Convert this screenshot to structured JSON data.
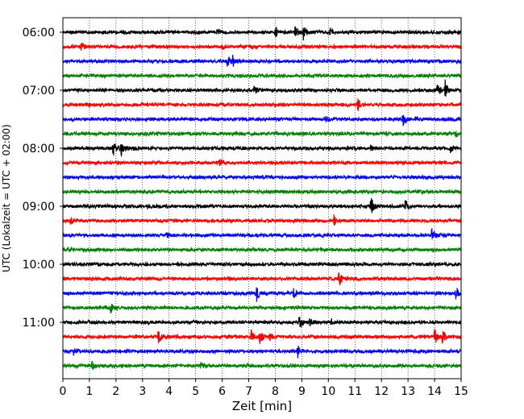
{
  "chart_data": {
    "type": "line",
    "title": "",
    "xlabel": "Zeit  [min]",
    "ylabel": "UTC (Lokalzeit = UTC + 02:00)",
    "xlim": [
      0,
      15
    ],
    "x_ticks": [
      "0",
      "1",
      "2",
      "3",
      "4",
      "5",
      "6",
      "7",
      "8",
      "9",
      "10",
      "11",
      "12",
      "13",
      "14",
      "15"
    ],
    "y_tick_labels": [
      "06:00",
      "07:00",
      "08:00",
      "09:00",
      "10:00",
      "11:00"
    ],
    "grid": {
      "x": true,
      "y": false,
      "style": "dotted"
    },
    "trace_colors": [
      "#000000",
      "#ff0000",
      "#0000ff",
      "#008000"
    ],
    "traces": [
      {
        "start": "06:00",
        "color": "#000000",
        "events": [
          {
            "t": 5.8,
            "a": 0.35
          },
          {
            "t": 8.0,
            "a": 0.7
          },
          {
            "t": 8.75,
            "a": 0.9
          },
          {
            "t": 9.05,
            "a": 0.8
          },
          {
            "t": 10.05,
            "a": 0.75
          }
        ]
      },
      {
        "start": "06:15",
        "color": "#ff0000",
        "events": [
          {
            "t": 0.7,
            "a": 0.5
          },
          {
            "t": 6.0,
            "a": 0.2
          }
        ]
      },
      {
        "start": "06:30",
        "color": "#0000ff",
        "events": [
          {
            "t": 6.2,
            "a": 0.6
          },
          {
            "t": 6.4,
            "a": 0.5
          }
        ]
      },
      {
        "start": "06:45",
        "color": "#008000",
        "events": []
      },
      {
        "start": "07:00",
        "color": "#000000",
        "events": [
          {
            "t": 7.2,
            "a": 0.55
          },
          {
            "t": 14.1,
            "a": 0.9
          },
          {
            "t": 14.4,
            "a": 1.0
          }
        ]
      },
      {
        "start": "07:15",
        "color": "#ff0000",
        "events": [
          {
            "t": 11.1,
            "a": 0.7
          }
        ]
      },
      {
        "start": "07:30",
        "color": "#0000ff",
        "events": [
          {
            "t": 9.9,
            "a": 0.35
          },
          {
            "t": 12.8,
            "a": 0.75
          },
          {
            "t": 13.3,
            "a": 0.3
          }
        ]
      },
      {
        "start": "07:45",
        "color": "#008000",
        "events": [
          {
            "t": 14.8,
            "a": 0.3
          }
        ]
      },
      {
        "start": "08:00",
        "color": "#000000",
        "events": [
          {
            "t": 1.9,
            "a": 0.9
          },
          {
            "t": 2.2,
            "a": 0.7
          },
          {
            "t": 2.6,
            "a": 0.3
          },
          {
            "t": 11.6,
            "a": 0.35
          },
          {
            "t": 14.6,
            "a": 0.4
          }
        ]
      },
      {
        "start": "08:15",
        "color": "#ff0000",
        "events": [
          {
            "t": 5.9,
            "a": 0.45
          }
        ]
      },
      {
        "start": "08:30",
        "color": "#0000ff",
        "events": []
      },
      {
        "start": "08:45",
        "color": "#008000",
        "events": []
      },
      {
        "start": "09:00",
        "color": "#000000",
        "events": [
          {
            "t": 3.2,
            "a": 0.35
          },
          {
            "t": 11.6,
            "a": 1.0
          },
          {
            "t": 12.9,
            "a": 0.7
          }
        ]
      },
      {
        "start": "09:15",
        "color": "#ff0000",
        "events": [
          {
            "t": 0.3,
            "a": 0.35
          },
          {
            "t": 10.2,
            "a": 0.55
          }
        ]
      },
      {
        "start": "09:30",
        "color": "#0000ff",
        "events": [
          {
            "t": 3.9,
            "a": 0.3
          },
          {
            "t": 13.9,
            "a": 0.75
          }
        ]
      },
      {
        "start": "09:45",
        "color": "#008000",
        "events": [
          {
            "t": 0.2,
            "a": 0.25
          }
        ]
      },
      {
        "start": "10:00",
        "color": "#000000",
        "events": []
      },
      {
        "start": "10:15",
        "color": "#ff0000",
        "events": [
          {
            "t": 10.4,
            "a": 0.8
          }
        ]
      },
      {
        "start": "10:30",
        "color": "#0000ff",
        "events": [
          {
            "t": 7.3,
            "a": 0.75
          },
          {
            "t": 8.7,
            "a": 0.5
          },
          {
            "t": 14.8,
            "a": 0.7
          }
        ]
      },
      {
        "start": "10:45",
        "color": "#008000",
        "events": [
          {
            "t": 1.8,
            "a": 0.65
          }
        ]
      },
      {
        "start": "11:00",
        "color": "#000000",
        "events": [
          {
            "t": 8.9,
            "a": 0.75
          },
          {
            "t": 9.3,
            "a": 0.45
          },
          {
            "t": 10.1,
            "a": 0.35
          }
        ]
      },
      {
        "start": "11:15",
        "color": "#ff0000",
        "events": [
          {
            "t": 3.6,
            "a": 0.9
          },
          {
            "t": 7.1,
            "a": 0.7
          },
          {
            "t": 7.4,
            "a": 0.9
          },
          {
            "t": 7.8,
            "a": 0.4
          },
          {
            "t": 14.0,
            "a": 0.9
          },
          {
            "t": 14.3,
            "a": 0.75
          }
        ]
      },
      {
        "start": "11:30",
        "color": "#0000ff",
        "events": [
          {
            "t": 0.4,
            "a": 0.35
          },
          {
            "t": 8.85,
            "a": 0.75
          }
        ]
      },
      {
        "start": "11:45",
        "color": "#008000",
        "events": [
          {
            "t": 1.1,
            "a": 0.45
          },
          {
            "t": 5.2,
            "a": 0.3
          }
        ]
      }
    ]
  }
}
